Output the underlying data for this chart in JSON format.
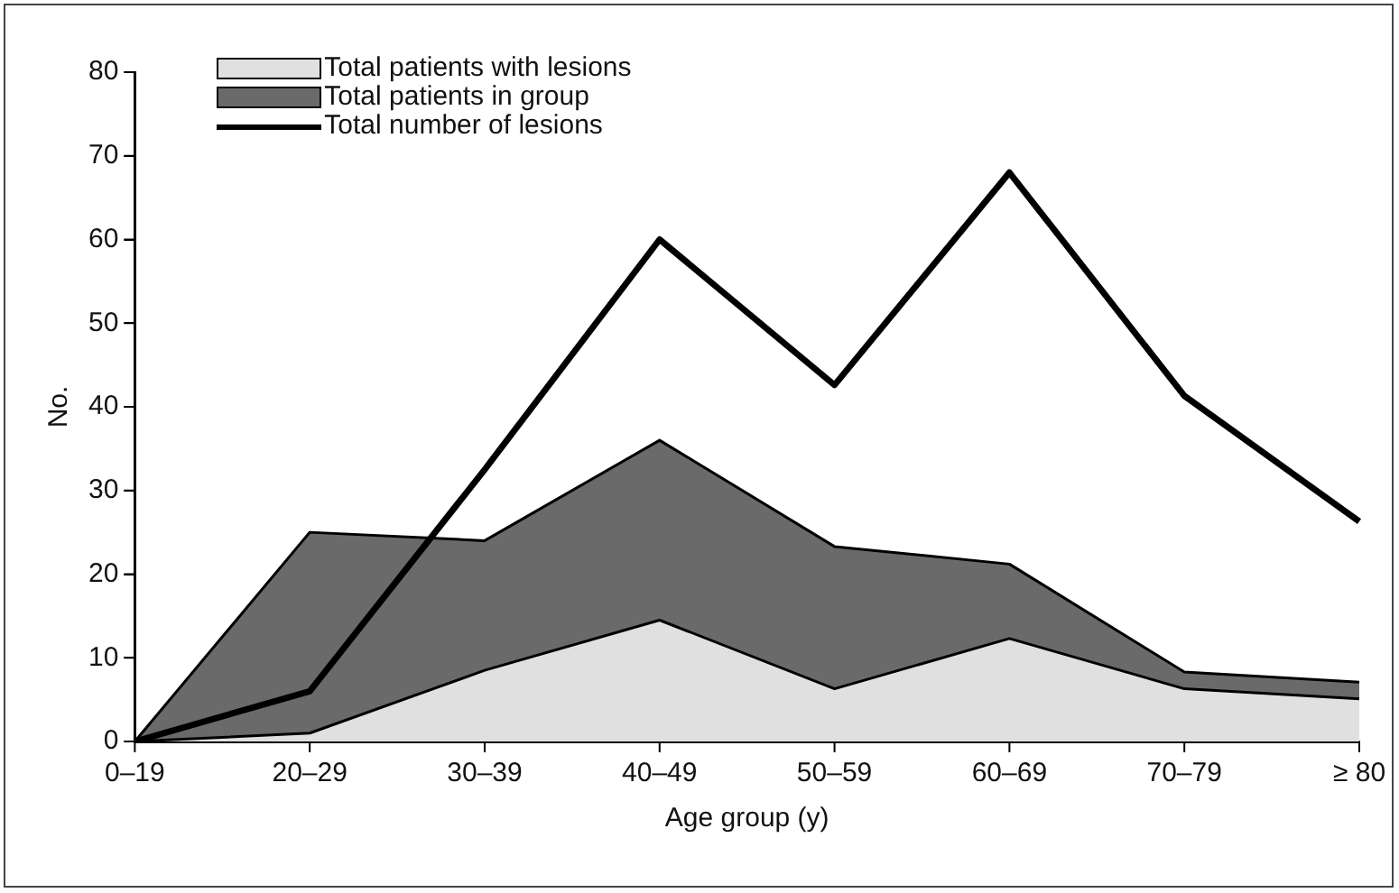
{
  "chart_data": {
    "type": "area",
    "xlabel": "Age group (y)",
    "ylabel": "No.",
    "categories": [
      "0–19",
      "20–29",
      "30–39",
      "40–49",
      "50–59",
      "60–69",
      "70–79",
      "≥ 80"
    ],
    "series": [
      {
        "name": "Total patients with lesions",
        "color": "#e0e0e0",
        "values": [
          0,
          1,
          8.5,
          14.5,
          6.3,
          12.3,
          6.3,
          5.1
        ]
      },
      {
        "name": "Total patients in group",
        "color": "#6a6a6a",
        "values": [
          0,
          25,
          24,
          36,
          23.3,
          21.2,
          8.3,
          7.1
        ]
      },
      {
        "name": "Total number of lesions",
        "type": "line",
        "color": "#000000",
        "values": [
          0,
          6,
          32.5,
          60,
          42.6,
          68,
          41.3,
          26.3
        ]
      }
    ],
    "ylim": [
      0,
      80
    ],
    "yticks": [
      0,
      10,
      20,
      30,
      40,
      50,
      60,
      70,
      80
    ],
    "grid": false,
    "legend": "top left",
    "marker": "none"
  }
}
